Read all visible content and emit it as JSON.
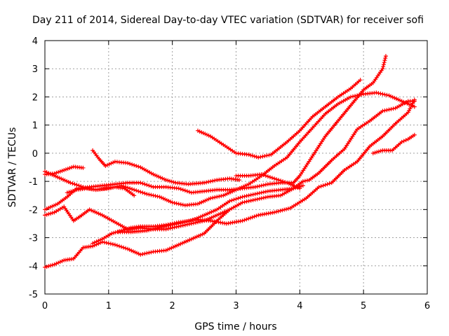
{
  "chart_data": {
    "type": "scatter",
    "title": "Day 211 of 2014, Sidereal Day-to-day VTEC variation (SDTVAR) for receiver sofi",
    "xlabel": "GPS time / hours",
    "ylabel": "SDTVAR / TECUs",
    "xlim": [
      0,
      6
    ],
    "ylim": [
      -5,
      4
    ],
    "x_ticks": [
      "0",
      "1",
      "2",
      "3",
      "4",
      "5",
      "6"
    ],
    "y_ticks": [
      "-5",
      "-4",
      "-3",
      "-2",
      "-1",
      "0",
      "1",
      "2",
      "3",
      "4"
    ],
    "x_tick_values": [
      0,
      1,
      2,
      3,
      4,
      5,
      6
    ],
    "y_tick_values": [
      -5,
      -4,
      -3,
      -2,
      -1,
      0,
      1,
      2,
      3,
      4
    ],
    "grid": true,
    "marker": "plus",
    "color": "#ff0000",
    "series": [
      {
        "x": [
          0.0,
          0.15,
          0.3,
          0.45,
          0.6
        ],
        "y": [
          -0.75,
          -0.72,
          -0.6,
          -0.48,
          -0.52
        ]
      },
      {
        "x": [
          0.75,
          0.85,
          0.95,
          1.1,
          1.3,
          1.5,
          1.7,
          1.9,
          2.05,
          2.25,
          2.5,
          2.7,
          2.9,
          3.05
        ],
        "y": [
          0.1,
          -0.2,
          -0.45,
          -0.3,
          -0.35,
          -0.5,
          -0.75,
          -0.95,
          -1.05,
          -1.1,
          -1.05,
          -0.95,
          -0.9,
          -0.95
        ]
      },
      {
        "x": [
          2.4,
          2.6,
          2.8,
          3.0,
          3.2,
          3.35,
          3.55,
          3.8,
          4.0,
          4.2,
          4.4,
          4.6,
          4.8,
          4.95
        ],
        "y": [
          0.8,
          0.6,
          0.3,
          0.0,
          -0.05,
          -0.15,
          -0.05,
          0.4,
          0.8,
          1.3,
          1.65,
          2.0,
          2.3,
          2.6
        ]
      },
      {
        "x": [
          0.0,
          0.2,
          0.4,
          0.6,
          0.8,
          1.0,
          1.2,
          1.4,
          1.6,
          1.8,
          2.0,
          2.2,
          2.4,
          2.6,
          2.8,
          3.0,
          3.2,
          3.4,
          3.6,
          3.8,
          4.0,
          4.2,
          4.4,
          4.6,
          4.8,
          5.0,
          5.2,
          5.4,
          5.6,
          5.8
        ],
        "y": [
          -0.65,
          -0.85,
          -1.05,
          -1.2,
          -1.3,
          -1.25,
          -1.15,
          -1.3,
          -1.45,
          -1.55,
          -1.75,
          -1.85,
          -1.8,
          -1.6,
          -1.5,
          -1.3,
          -1.1,
          -0.8,
          -0.45,
          -0.15,
          0.4,
          0.9,
          1.4,
          1.75,
          2.0,
          2.1,
          2.15,
          2.05,
          1.85,
          1.65
        ]
      },
      {
        "x": [
          0.0,
          0.2,
          0.35,
          0.5,
          0.7,
          0.9,
          1.1,
          1.3,
          1.5,
          1.7,
          1.9,
          2.1,
          2.3,
          2.5,
          2.7,
          2.9,
          3.1,
          3.3,
          3.5,
          3.7,
          3.9,
          4.0,
          4.2,
          4.4,
          4.6,
          4.8,
          5.0,
          5.15,
          5.3,
          5.35
        ],
        "y": [
          -2.0,
          -1.8,
          -1.55,
          -1.25,
          -1.2,
          -1.15,
          -1.1,
          -1.05,
          -1.05,
          -1.2,
          -1.2,
          -1.25,
          -1.4,
          -1.35,
          -1.3,
          -1.3,
          -1.25,
          -1.2,
          -1.1,
          -1.05,
          -1.05,
          -0.8,
          -0.1,
          0.6,
          1.15,
          1.7,
          2.25,
          2.5,
          3.0,
          3.45
        ]
      },
      {
        "x": [
          0.0,
          0.15,
          0.3,
          0.45,
          0.55,
          0.7,
          0.9,
          1.1,
          1.3,
          1.5,
          1.7,
          1.9,
          2.1,
          2.3,
          2.5,
          2.7,
          2.9
        ],
        "y": [
          -2.2,
          -2.1,
          -1.9,
          -2.4,
          -2.25,
          -2.0,
          -2.2,
          -2.45,
          -2.7,
          -2.65,
          -2.7,
          -2.7,
          -2.6,
          -2.5,
          -2.4,
          -2.2,
          -2.0
        ]
      },
      {
        "x": [
          1.15,
          1.35,
          1.6,
          1.85,
          2.1,
          2.35,
          2.6,
          2.85,
          3.1,
          3.35,
          3.6,
          3.85,
          4.1,
          4.3,
          4.5,
          4.7,
          4.9,
          5.1,
          5.3,
          5.5,
          5.7,
          5.8
        ],
        "y": [
          -2.8,
          -2.8,
          -2.75,
          -2.6,
          -2.5,
          -2.35,
          -2.4,
          -2.5,
          -2.4,
          -2.2,
          -2.1,
          -1.95,
          -1.6,
          -1.2,
          -1.05,
          -0.6,
          -0.3,
          0.25,
          0.6,
          1.05,
          1.45,
          1.9
        ]
      },
      {
        "x": [
          0.0,
          0.15,
          0.3,
          0.45,
          0.6,
          0.75,
          0.9,
          1.1,
          1.3,
          1.5,
          1.7,
          1.9,
          2.1,
          2.3,
          2.5,
          2.7,
          2.9,
          3.1,
          3.3,
          3.5,
          3.7,
          3.9,
          4.05,
          4.15,
          4.3,
          4.5,
          4.7,
          4.9,
          5.1,
          5.3,
          5.5,
          5.7,
          5.8
        ],
        "y": [
          -4.05,
          -3.95,
          -3.8,
          -3.75,
          -3.35,
          -3.3,
          -3.15,
          -3.25,
          -3.4,
          -3.6,
          -3.5,
          -3.45,
          -3.25,
          -3.05,
          -2.85,
          -2.4,
          -2.0,
          -1.75,
          -1.65,
          -1.55,
          -1.5,
          -1.25,
          -1.0,
          -0.95,
          -0.7,
          -0.25,
          0.15,
          0.85,
          1.15,
          1.5,
          1.6,
          1.85,
          1.85
        ]
      },
      {
        "x": [
          0.75,
          0.9,
          1.05,
          1.2,
          1.35,
          1.5,
          1.7,
          1.9,
          2.1,
          2.3,
          2.5,
          2.7,
          2.9,
          3.1,
          3.3,
          3.5,
          3.7,
          3.9,
          4.05
        ],
        "y": [
          -3.2,
          -3.05,
          -2.85,
          -2.75,
          -2.65,
          -2.6,
          -2.6,
          -2.55,
          -2.45,
          -2.4,
          -2.2,
          -2.0,
          -1.7,
          -1.55,
          -1.45,
          -1.35,
          -1.3,
          -1.25,
          -1.15
        ]
      },
      {
        "x": [
          0.35,
          0.5,
          0.65,
          0.8,
          0.95,
          1.1,
          1.25,
          1.4
        ],
        "y": [
          -1.4,
          -1.3,
          -1.25,
          -1.3,
          -1.25,
          -1.2,
          -1.25,
          -1.5
        ]
      },
      {
        "x": [
          3.0,
          3.2,
          3.4,
          3.6,
          3.8,
          4.0
        ],
        "y": [
          -0.8,
          -0.8,
          -0.75,
          -0.9,
          -1.05,
          -1.25
        ]
      },
      {
        "x": [
          5.15,
          5.3,
          5.45,
          5.6,
          5.7,
          5.8
        ],
        "y": [
          0.0,
          0.1,
          0.1,
          0.4,
          0.5,
          0.65
        ]
      }
    ]
  }
}
